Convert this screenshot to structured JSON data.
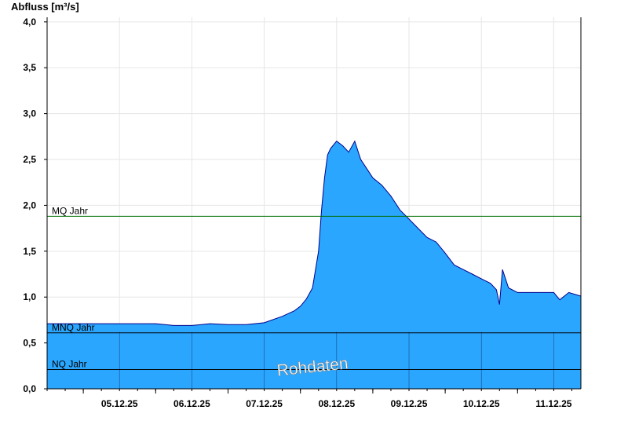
{
  "chart_data": {
    "type": "area",
    "ylabel": "Abfluss [m³/s]",
    "ylim": [
      0,
      4.05
    ],
    "yticks": [
      "0,0",
      "0,5",
      "1,0",
      "1,5",
      "2,0",
      "2,5",
      "3,0",
      "3,5",
      "4,0"
    ],
    "xlim": [
      "2025-12-04T12:00",
      "2025-12-11T21:00"
    ],
    "categories": [
      "05.12.25",
      "06.12.25",
      "07.12.25",
      "08.12.25",
      "09.12.25",
      "10.12.25",
      "11.12.25"
    ],
    "grid": true,
    "colors": {
      "fill": "#2aa6ff",
      "line": "#00008b",
      "mq_line": "#007000",
      "ref_line": "#000000"
    },
    "reference_lines": [
      {
        "label": "MQ Jahr",
        "value": 1.88
      },
      {
        "label": "MNQ Jahr",
        "value": 0.61
      },
      {
        "label": "NQ Jahr",
        "value": 0.21
      }
    ],
    "series": [
      {
        "x": [
          "2025-12-04T12:00",
          "2025-12-05T06:00",
          "2025-12-05T12:00",
          "2025-12-05T18:00",
          "2025-12-06T00:00",
          "2025-12-06T06:00",
          "2025-12-06T12:00",
          "2025-12-06T18:00",
          "2025-12-07T00:00",
          "2025-12-07T06:00",
          "2025-12-07T12:00",
          "2025-12-07T18:00",
          "2025-12-07T22:00",
          "2025-12-08T00:00",
          "2025-12-08T02:00",
          "2025-12-08T04:00",
          "2025-12-08T06:00",
          "2025-12-08T07:00",
          "2025-12-08T08:00",
          "2025-12-08T09:00",
          "2025-12-08T10:00",
          "2025-12-08T12:00",
          "2025-12-08T14:00",
          "2025-12-08T16:00",
          "2025-12-08T18:00",
          "2025-12-08T20:00",
          "2025-12-08T22:00",
          "2025-12-09T00:00",
          "2025-12-09T03:00",
          "2025-12-09T06:00",
          "2025-12-09T09:00",
          "2025-12-09T12:00",
          "2025-12-09T15:00",
          "2025-12-09T18:00",
          "2025-12-09T21:00",
          "2025-12-10T00:00",
          "2025-12-10T03:00",
          "2025-12-10T06:00",
          "2025-12-10T09:00",
          "2025-12-10T12:00",
          "2025-12-10T15:00",
          "2025-12-10T17:00",
          "2025-12-10T18:00",
          "2025-12-10T19:00",
          "2025-12-10T21:00",
          "2025-12-11T00:00",
          "2025-12-11T06:00",
          "2025-12-11T12:00",
          "2025-12-11T14:00",
          "2025-12-11T17:00",
          "2025-12-11T21:00"
        ],
        "values": [
          0.71,
          0.71,
          0.71,
          0.71,
          0.71,
          0.69,
          0.69,
          0.71,
          0.7,
          0.7,
          0.72,
          0.79,
          0.85,
          0.9,
          0.98,
          1.1,
          1.5,
          1.95,
          2.3,
          2.55,
          2.62,
          2.7,
          2.65,
          2.58,
          2.7,
          2.5,
          2.4,
          2.3,
          2.22,
          2.1,
          1.95,
          1.85,
          1.75,
          1.65,
          1.6,
          1.48,
          1.35,
          1.3,
          1.25,
          1.2,
          1.15,
          1.08,
          0.92,
          1.3,
          1.1,
          1.05,
          1.05,
          1.05,
          0.97,
          1.05,
          1.01
        ]
      }
    ]
  }
}
